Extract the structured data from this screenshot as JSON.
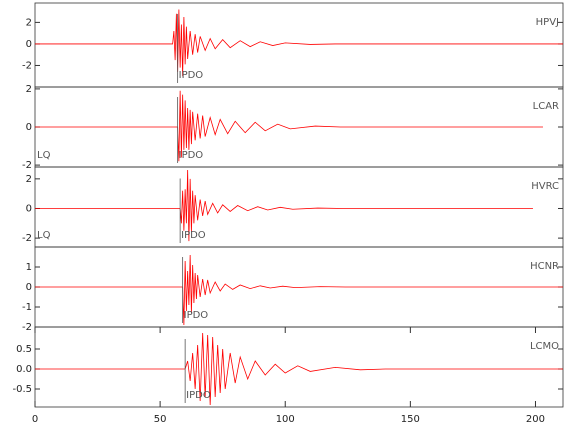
{
  "chart_data": [
    {
      "type": "line",
      "title": "HPVJ",
      "color": "#ff0000",
      "xlim": [
        0,
        211
      ],
      "ylim": [
        -4,
        3.8
      ],
      "yticks": [
        -2,
        0,
        2
      ],
      "phase": {
        "x": 57,
        "label": "IPDO"
      },
      "x": [
        0,
        55,
        55.5,
        56,
        56.5,
        57,
        57.5,
        58,
        58.5,
        59,
        59.5,
        60,
        60.5,
        61,
        62,
        63,
        64,
        65,
        66,
        68,
        70,
        72,
        75,
        78,
        82,
        86,
        90,
        95,
        100,
        110,
        120,
        211
      ],
      "values": [
        0,
        0,
        1.2,
        -1.5,
        2.8,
        -2.6,
        3.2,
        -2.2,
        1.8,
        -3.0,
        2.5,
        -1.9,
        1.6,
        -1.4,
        1.2,
        -1.0,
        0.9,
        -0.8,
        0.7,
        -0.6,
        0.5,
        -0.45,
        0.4,
        -0.35,
        0.3,
        -0.25,
        0.2,
        -0.15,
        0.1,
        -0.05,
        0,
        0
      ]
    },
    {
      "type": "line",
      "title": "LCAR",
      "color": "#ff0000",
      "xlim": [
        0,
        211
      ],
      "ylim": [
        -2.1,
        2.1
      ],
      "yticks": [
        -2,
        0,
        2
      ],
      "phase": {
        "x": 57,
        "label": "IPDO"
      },
      "note": "LQ",
      "x": [
        0,
        57,
        57.5,
        58,
        58.5,
        59,
        59.5,
        60,
        60.5,
        61,
        61.5,
        62,
        62.5,
        63,
        64,
        65,
        66,
        67,
        68,
        70,
        72,
        74,
        77,
        80,
        84,
        88,
        92,
        97,
        102,
        112,
        122,
        203
      ],
      "values": [
        0,
        0,
        -1.8,
        1.9,
        -1.6,
        1.7,
        -1.2,
        1.4,
        -1.1,
        1.0,
        -1.2,
        0.9,
        -0.9,
        0.8,
        -0.7,
        0.7,
        -0.6,
        0.6,
        -0.5,
        0.5,
        -0.4,
        0.4,
        -0.35,
        0.3,
        -0.3,
        0.25,
        -0.2,
        0.15,
        -0.1,
        0.05,
        0,
        0
      ]
    },
    {
      "type": "line",
      "title": "HVRC",
      "color": "#ff0000",
      "xlim": [
        0,
        211
      ],
      "ylim": [
        -2.6,
        2.8
      ],
      "yticks": [
        -2,
        0,
        2
      ],
      "phase": {
        "x": 58,
        "label": "IPDO"
      },
      "note": "LQ",
      "x": [
        0,
        58,
        58.5,
        59,
        59.5,
        60,
        60.5,
        61,
        61.5,
        62,
        62.5,
        63,
        63.5,
        64,
        65,
        66,
        67,
        68,
        69,
        71,
        73,
        75,
        78,
        81,
        85,
        89,
        93,
        98,
        103,
        113,
        123,
        199
      ],
      "values": [
        0,
        0,
        -1.0,
        1.2,
        -1.5,
        1.3,
        -1.0,
        2.6,
        -2.2,
        2.0,
        -1.6,
        1.2,
        -1.0,
        0.9,
        -0.8,
        0.6,
        -0.5,
        0.5,
        -0.4,
        0.35,
        -0.3,
        0.25,
        -0.2,
        0.2,
        -0.15,
        0.12,
        -0.1,
        0.08,
        -0.05,
        0.03,
        0,
        0
      ]
    },
    {
      "type": "line",
      "title": "HCNR",
      "color": "#ff0000",
      "xlim": [
        0,
        211
      ],
      "ylim": [
        -2,
        2
      ],
      "yticks": [
        -2,
        -1,
        0,
        1
      ],
      "phase": {
        "x": 59,
        "label": "IPDO"
      },
      "x": [
        0,
        59,
        59.5,
        60,
        60.5,
        61,
        61.5,
        62,
        62.5,
        63,
        63.5,
        64,
        64.5,
        65,
        66,
        67,
        68,
        69,
        70,
        72,
        74,
        76,
        79,
        82,
        86,
        90,
        94,
        99,
        104,
        114,
        124,
        211
      ],
      "values": [
        0,
        0,
        -1.9,
        1.3,
        -1.2,
        0.8,
        -0.9,
        1.6,
        -1.3,
        1.1,
        -0.8,
        0.7,
        -0.6,
        0.6,
        -0.5,
        0.4,
        -0.4,
        0.35,
        -0.3,
        0.25,
        -0.2,
        0.15,
        -0.12,
        0.1,
        -0.08,
        0.06,
        -0.05,
        0.04,
        -0.03,
        0.02,
        0,
        0
      ]
    },
    {
      "type": "line",
      "title": "LCMO",
      "color": "#ff0000",
      "xlim": [
        0,
        211
      ],
      "ylim": [
        -0.95,
        1.05
      ],
      "yticks": [
        -0.5,
        {
          "value": 0,
          "label": "0.0"
        },
        0.5
      ],
      "xticks": [
        0,
        50,
        100,
        150,
        200
      ],
      "phase": {
        "x": 60,
        "label": "IPDO"
      },
      "x": [
        0,
        60,
        61,
        62,
        63,
        64,
        65,
        66,
        67,
        68,
        69,
        70,
        71,
        72,
        73,
        74,
        75,
        76,
        78,
        80,
        82,
        85,
        88,
        92,
        96,
        100,
        105,
        110,
        120,
        130,
        140,
        211
      ],
      "values": [
        0,
        0,
        0.2,
        -0.3,
        0.4,
        -0.5,
        0.6,
        -0.8,
        0.9,
        -0.7,
        0.85,
        -0.9,
        0.8,
        -0.7,
        0.6,
        -0.6,
        0.5,
        -0.5,
        0.4,
        -0.35,
        0.3,
        -0.25,
        0.2,
        -0.15,
        0.12,
        -0.1,
        0.08,
        -0.06,
        0.04,
        -0.02,
        0,
        0
      ]
    }
  ]
}
